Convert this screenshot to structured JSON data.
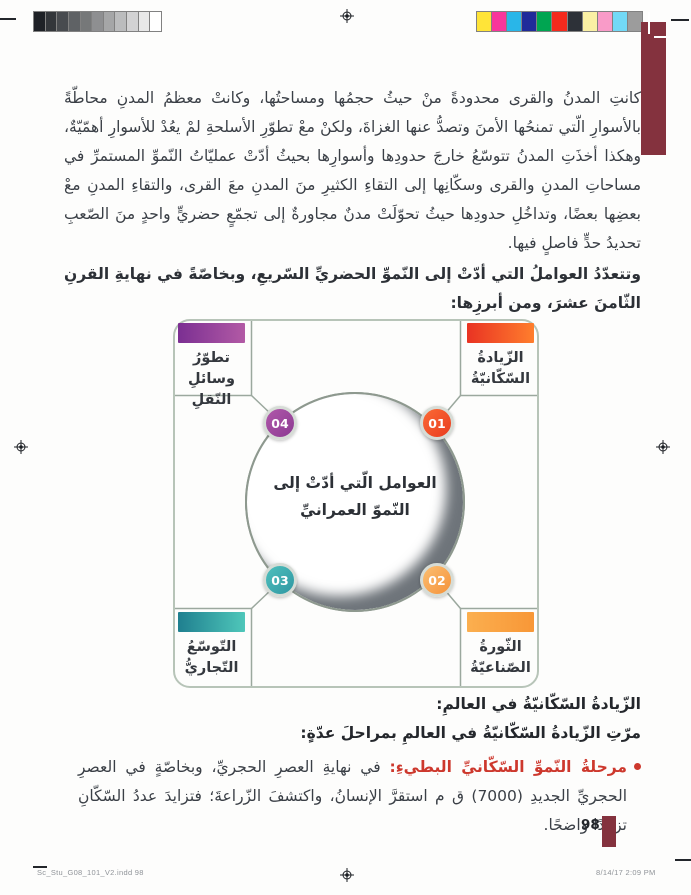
{
  "page": {
    "number": "98",
    "footer_left": "Sc_Stu_G08_101_V2.indd   98",
    "footer_right": "8/14/17   2:09 PM",
    "tab_color": "#84323e",
    "accent_red": "#cd382d"
  },
  "print_marks": {
    "grayscale_steps": [
      "#1e2126",
      "#33363a",
      "#484b4f",
      "#5f6265",
      "#767879",
      "#8e8f91",
      "#a5a6a7",
      "#bbbcbd",
      "#d2d2d3",
      "#e8e8e8",
      "#ffffff"
    ],
    "color_steps": [
      "#ffe438",
      "#f8369b",
      "#29b6e8",
      "#202b9a",
      "#00a551",
      "#f42a1d",
      "#2d3138",
      "#faf0a4",
      "#f99bc8",
      "#72d9f6",
      "#9c9c9c"
    ]
  },
  "body": {
    "paragraph1": "كانتِ المدنُ والقرى محدودةً منْ حيثُ حجمُها ومساحتُها، وكانتْ معظمُ المدنِ محاطّةً بالأسوارِ الّتي تمنحُها الأمنَ وتصدُّ عنها الغزاةَ، ولكنْ معْ تطوّرِ الأسلحةِ لمْ يعُدْ للأسوارِ أهمّيّةٌ، وهكذا أخذَتِ المدنُ تتوسّعُ خارجَ حدودِها وأسوارِها بحيثُ أدّتْ عمليّاتُ النّموِّ المستمرِّ في مساحاتِ المدنِ والقرى وسكّانِها إلى التقاءِ الكثيرِ منَ المدنِ معَ القرى، والتقاءِ المدنِ معْ بعضِها بعضًا، وتداخُلِ حدودِها حيثُ تحوّلَتْ مدنٌ مجاورةٌ إلى تجمّعٍ حضريٍّ واحدٍ منَ الصّعبِ تحديدُ حدٍّ فاصلٍ فيها.",
    "intro_bold": "وتتعدّدُ العواملُ التي أدّتْ إلى النّموِّ الحضريِّ السّريعِ، وبخاصّةً في نهايةِ القرنِ الثّامنَ عشرَ، ومن أبرزِها:",
    "section_heading": "الزّيادةُ السّكّانيّةُ في العالمِ:",
    "sub_heading": "مرّتِ الزّيادةُ السّكّانيّةُ في العالمِ بمراحلَ عدّةٍ:",
    "bullet": {
      "lead": "مرحلةُ النّموِّ السّكّانيِّ البطيءِ:",
      "text": " في نهايةِ العصرِ الحجريِّ، وبخاصّةٍ في العصرِ الحجريِّ الجديدِ (7000) ق م استقرَّ الإنسانُ، واكتشفَ الزّراعةَ؛ فتزايدَ عددُ السّكّانِ تزايدًا واضحًا."
    }
  },
  "diagram": {
    "center_line1": "العوامل الّتي أدّتْ إلى",
    "center_line2": "النّموّ العمرانيِّ",
    "factors": [
      {
        "num": "01",
        "label_line1": "الزّيادةُ",
        "label_line2": "السّكّانيّةُ",
        "bar_from": "#e93323",
        "bar_to": "#ff7e2d",
        "circle_from": "#fb6a35",
        "circle_to": "#e93c1f"
      },
      {
        "num": "02",
        "label_line1": "الثّورةُ",
        "label_line2": "الصّناعيّةُ",
        "bar_from": "#fbaf4f",
        "bar_to": "#f89737",
        "circle_from": "#fbbf72",
        "circle_to": "#f5923a"
      },
      {
        "num": "03",
        "label_line1": "التّوسّعُ",
        "label_line2": "التّجاريُّ",
        "bar_from": "#1f7f8f",
        "bar_to": "#4fc7ba",
        "circle_from": "#4fc0bd",
        "circle_to": "#2f97a2"
      },
      {
        "num": "04",
        "label_line1": "تطوّرُ وسائلِ",
        "label_line2": "النّقلِ",
        "bar_from": "#7b2f92",
        "bar_to": "#b25aa5",
        "circle_from": "#b058aa",
        "circle_to": "#8c3a92"
      }
    ]
  }
}
